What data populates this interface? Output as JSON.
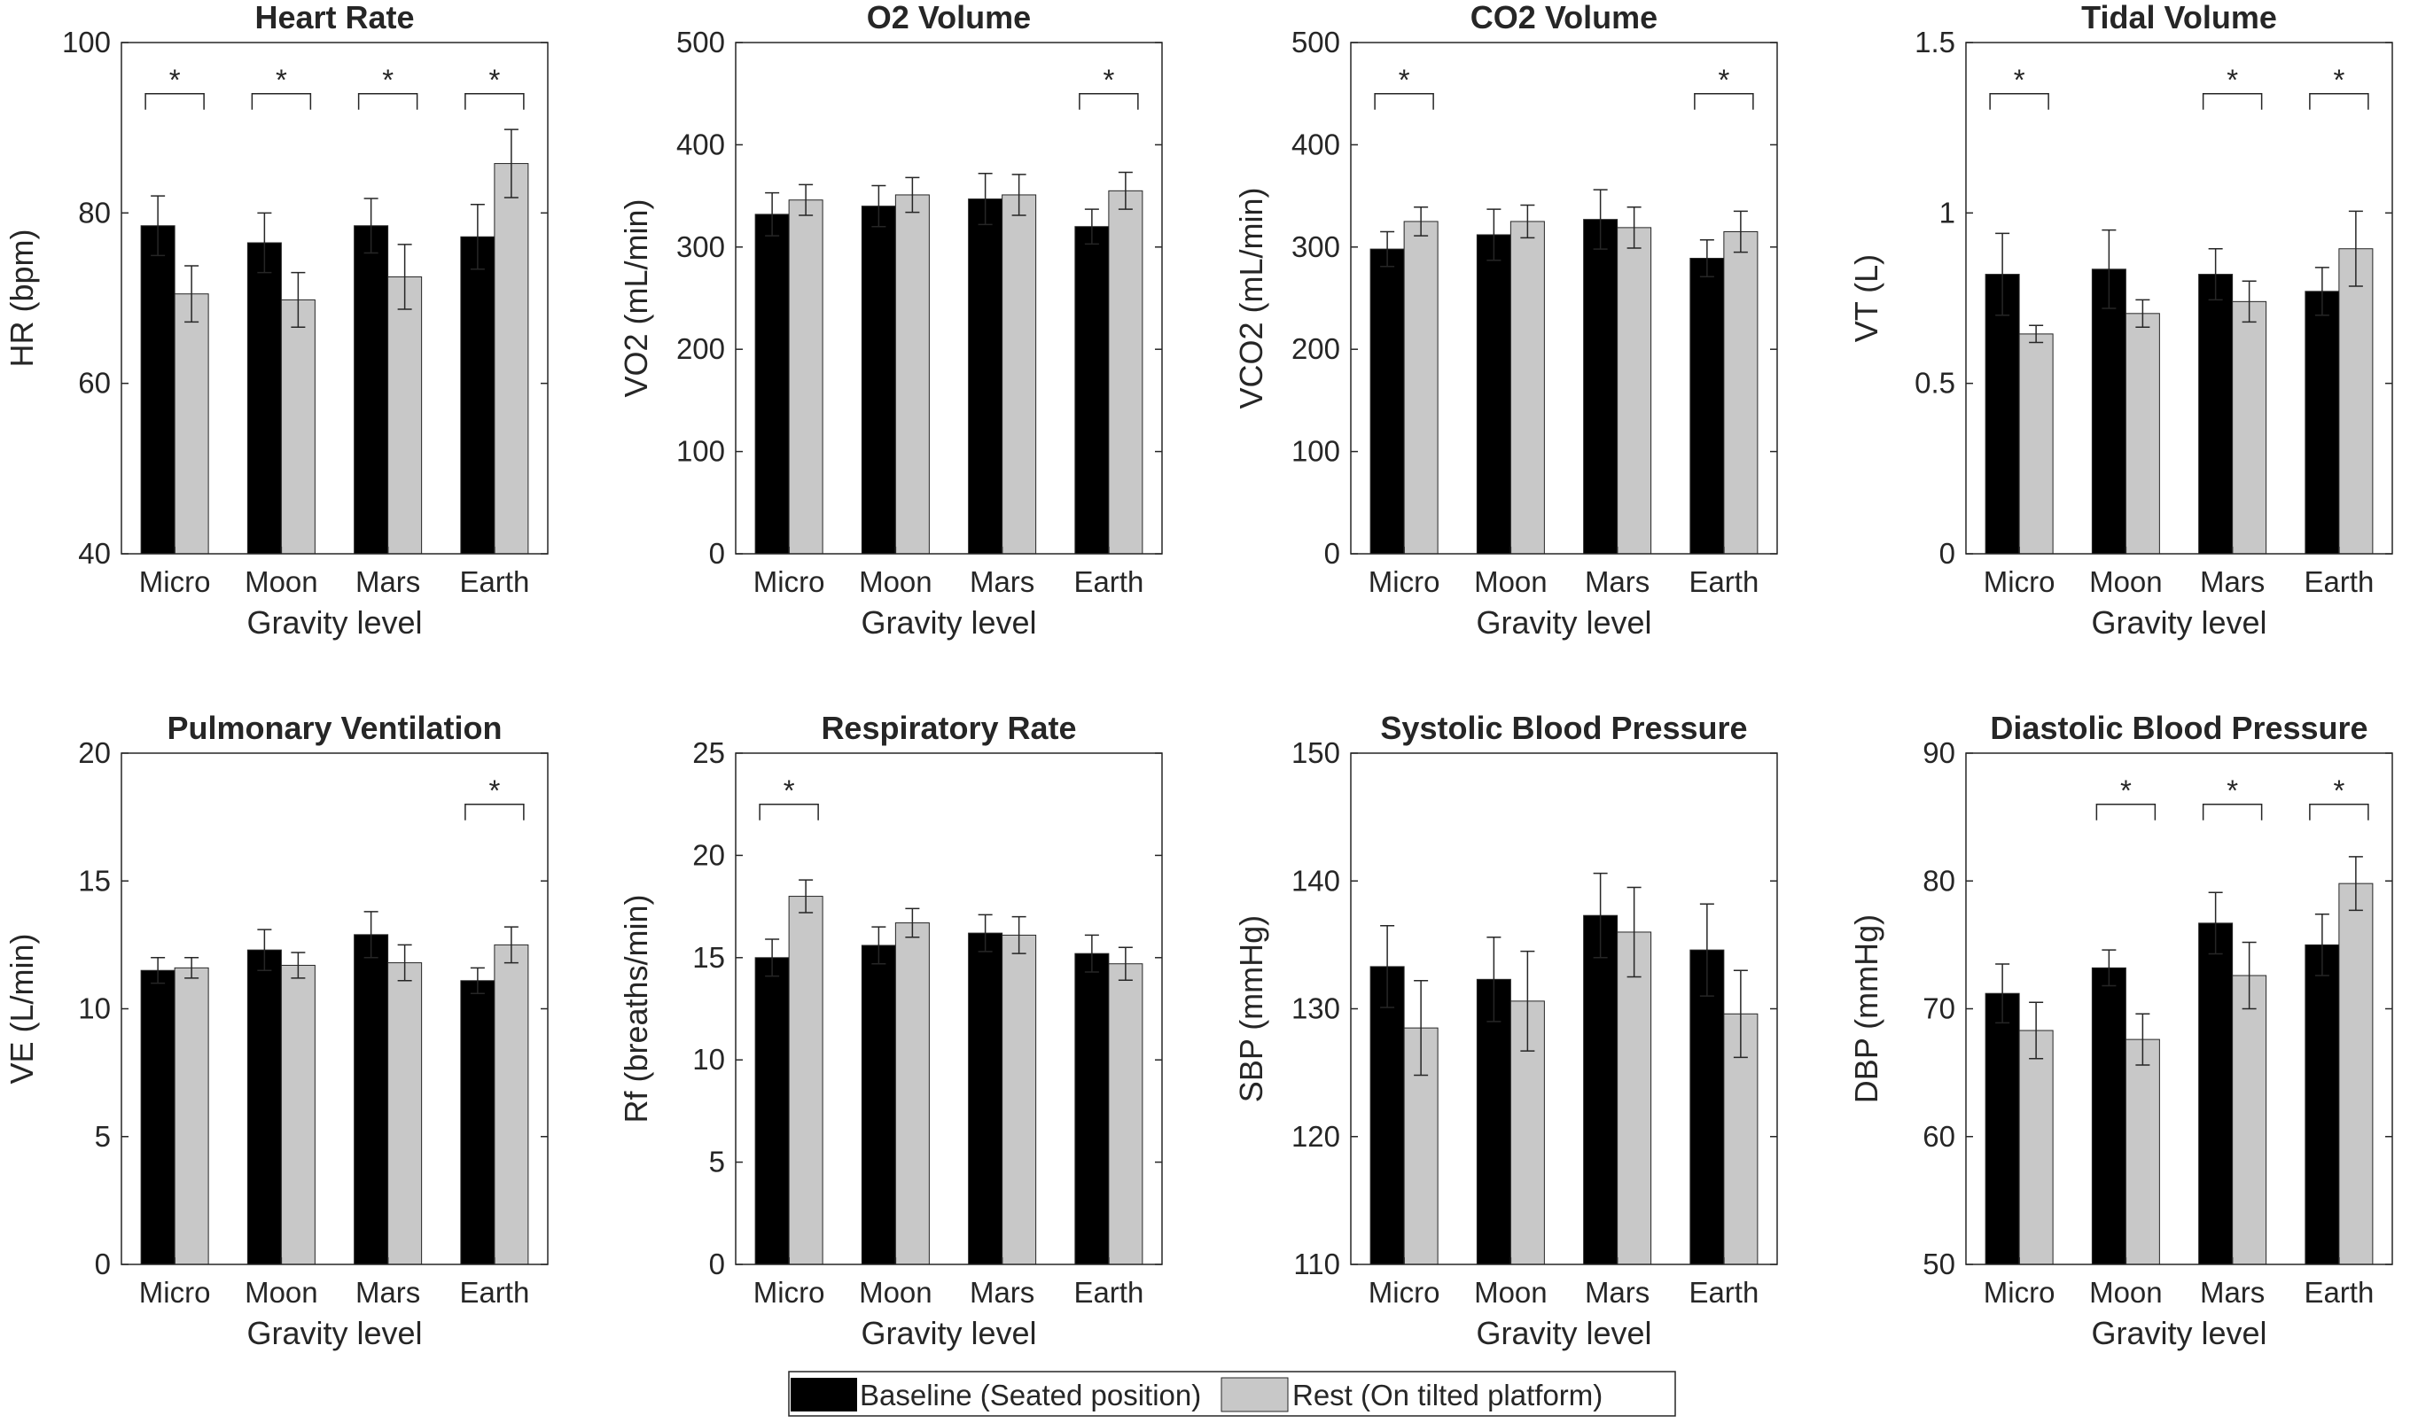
{
  "colors": {
    "baseline": "#000000",
    "rest": "#c8c8c8",
    "axis": "#262626"
  },
  "legend": {
    "position": "bottom-center",
    "entries": [
      "Baseline (Seated position)",
      "Rest (On tilted platform)"
    ]
  },
  "chart_data": [
    {
      "type": "bar",
      "title": "Heart Rate",
      "xlabel": "Gravity level",
      "ylabel": "HR (bpm)",
      "categories": [
        "Micro",
        "Moon",
        "Mars",
        "Earth"
      ],
      "ylim": [
        40,
        100
      ],
      "yticks": [
        40,
        60,
        80,
        100
      ],
      "ytick_labels": [
        "40",
        "60",
        "80",
        "100"
      ],
      "series": [
        {
          "name": "Baseline (Seated position)",
          "values": [
            78.5,
            76.5,
            78.5,
            77.2
          ],
          "errors": [
            3.5,
            3.5,
            3.2,
            3.8
          ]
        },
        {
          "name": "Rest (On tilted platform)",
          "values": [
            70.5,
            69.8,
            72.5,
            85.8
          ],
          "errors": [
            3.3,
            3.2,
            3.8,
            4.0
          ]
        }
      ],
      "significance": [
        true,
        true,
        true,
        true
      ],
      "significance_label": "*"
    },
    {
      "type": "bar",
      "title": "O2 Volume",
      "xlabel": "Gravity level",
      "ylabel": "VO2 (mL/min)",
      "categories": [
        "Micro",
        "Moon",
        "Mars",
        "Earth"
      ],
      "ylim": [
        0,
        500
      ],
      "yticks": [
        0,
        100,
        200,
        300,
        400,
        500
      ],
      "ytick_labels": [
        "0",
        "100",
        "200",
        "300",
        "400",
        "500"
      ],
      "series": [
        {
          "name": "Baseline (Seated position)",
          "values": [
            332,
            340,
            347,
            320
          ],
          "errors": [
            21,
            20,
            25,
            17
          ]
        },
        {
          "name": "Rest (On tilted platform)",
          "values": [
            346,
            351,
            351,
            355
          ],
          "errors": [
            15,
            17,
            20,
            18
          ]
        }
      ],
      "significance": [
        false,
        false,
        false,
        true
      ],
      "significance_label": "*"
    },
    {
      "type": "bar",
      "title": "CO2 Volume",
      "xlabel": "Gravity level",
      "ylabel": "VCO2 (mL/min)",
      "categories": [
        "Micro",
        "Moon",
        "Mars",
        "Earth"
      ],
      "ylim": [
        0,
        500
      ],
      "yticks": [
        0,
        100,
        200,
        300,
        400,
        500
      ],
      "ytick_labels": [
        "0",
        "100",
        "200",
        "300",
        "400",
        "500"
      ],
      "series": [
        {
          "name": "Baseline (Seated position)",
          "values": [
            298,
            312,
            327,
            289
          ],
          "errors": [
            17,
            25,
            29,
            18
          ]
        },
        {
          "name": "Rest (On tilted platform)",
          "values": [
            325,
            325,
            319,
            315
          ],
          "errors": [
            14,
            16,
            20,
            20
          ]
        }
      ],
      "significance": [
        true,
        false,
        false,
        true
      ],
      "significance_label": "*"
    },
    {
      "type": "bar",
      "title": "Tidal Volume",
      "xlabel": "Gravity level",
      "ylabel": "VT (L)",
      "categories": [
        "Micro",
        "Moon",
        "Mars",
        "Earth"
      ],
      "ylim": [
        0,
        1.5
      ],
      "yticks": [
        0,
        0.5,
        1,
        1.5
      ],
      "ytick_labels": [
        "0",
        "0.5",
        "1",
        "1.5"
      ],
      "series": [
        {
          "name": "Baseline (Seated position)",
          "values": [
            0.82,
            0.835,
            0.82,
            0.77
          ],
          "errors": [
            0.12,
            0.115,
            0.075,
            0.07
          ]
        },
        {
          "name": "Rest (On tilted platform)",
          "values": [
            0.645,
            0.705,
            0.74,
            0.895
          ],
          "errors": [
            0.025,
            0.04,
            0.06,
            0.11
          ]
        }
      ],
      "significance": [
        true,
        false,
        true,
        true
      ],
      "significance_label": "*"
    },
    {
      "type": "bar",
      "title": "Pulmonary Ventilation",
      "xlabel": "Gravity level",
      "ylabel": "VE (L/min)",
      "categories": [
        "Micro",
        "Moon",
        "Mars",
        "Earth"
      ],
      "ylim": [
        0,
        20
      ],
      "yticks": [
        0,
        5,
        10,
        15,
        20
      ],
      "ytick_labels": [
        "0",
        "5",
        "10",
        "15",
        "20"
      ],
      "series": [
        {
          "name": "Baseline (Seated position)",
          "values": [
            11.5,
            12.3,
            12.9,
            11.1
          ],
          "errors": [
            0.5,
            0.8,
            0.9,
            0.5
          ]
        },
        {
          "name": "Rest (On tilted platform)",
          "values": [
            11.6,
            11.7,
            11.8,
            12.5
          ],
          "errors": [
            0.4,
            0.5,
            0.7,
            0.7
          ]
        }
      ],
      "significance": [
        false,
        false,
        false,
        true
      ],
      "significance_label": "*"
    },
    {
      "type": "bar",
      "title": "Respiratory Rate",
      "xlabel": "Gravity level",
      "ylabel": "Rf (breaths/min)",
      "categories": [
        "Micro",
        "Moon",
        "Mars",
        "Earth"
      ],
      "ylim": [
        0,
        25
      ],
      "yticks": [
        0,
        5,
        10,
        15,
        20,
        25
      ],
      "ytick_labels": [
        "0",
        "5",
        "10",
        "15",
        "20",
        "25"
      ],
      "series": [
        {
          "name": "Baseline (Seated position)",
          "values": [
            15.0,
            15.6,
            16.2,
            15.2
          ],
          "errors": [
            0.9,
            0.9,
            0.9,
            0.9
          ]
        },
        {
          "name": "Rest (On tilted platform)",
          "values": [
            18.0,
            16.7,
            16.1,
            14.7
          ],
          "errors": [
            0.8,
            0.7,
            0.9,
            0.8
          ]
        }
      ],
      "significance": [
        true,
        false,
        false,
        false
      ],
      "significance_label": "*"
    },
    {
      "type": "bar",
      "title": "Systolic Blood Pressure",
      "xlabel": "Gravity level",
      "ylabel": "SBP (mmHg)",
      "categories": [
        "Micro",
        "Moon",
        "Mars",
        "Earth"
      ],
      "ylim": [
        110,
        150
      ],
      "yticks": [
        110,
        120,
        130,
        140,
        150
      ],
      "ytick_labels": [
        "110",
        "120",
        "130",
        "140",
        "150"
      ],
      "series": [
        {
          "name": "Baseline (Seated position)",
          "values": [
            133.3,
            132.3,
            137.3,
            134.6
          ],
          "errors": [
            3.2,
            3.3,
            3.3,
            3.6
          ]
        },
        {
          "name": "Rest (On tilted platform)",
          "values": [
            128.5,
            130.6,
            136.0,
            129.6
          ],
          "errors": [
            3.7,
            3.9,
            3.5,
            3.4
          ]
        }
      ],
      "significance": [
        false,
        false,
        false,
        false
      ],
      "significance_label": "*"
    },
    {
      "type": "bar",
      "title": "Diastolic Blood Pressure",
      "xlabel": "Gravity level",
      "ylabel": "DBP (mmHg)",
      "categories": [
        "Micro",
        "Moon",
        "Mars",
        "Earth"
      ],
      "ylim": [
        50,
        90
      ],
      "yticks": [
        50,
        60,
        70,
        80,
        90
      ],
      "ytick_labels": [
        "50",
        "60",
        "70",
        "80",
        "90"
      ],
      "series": [
        {
          "name": "Baseline (Seated position)",
          "values": [
            71.2,
            73.2,
            76.7,
            75.0
          ],
          "errors": [
            2.3,
            1.4,
            2.4,
            2.4
          ]
        },
        {
          "name": "Rest (On tilted platform)",
          "values": [
            68.3,
            67.6,
            72.6,
            79.8
          ],
          "errors": [
            2.2,
            2.0,
            2.6,
            2.1
          ]
        }
      ],
      "significance": [
        false,
        true,
        true,
        true
      ],
      "significance_label": "*"
    }
  ]
}
